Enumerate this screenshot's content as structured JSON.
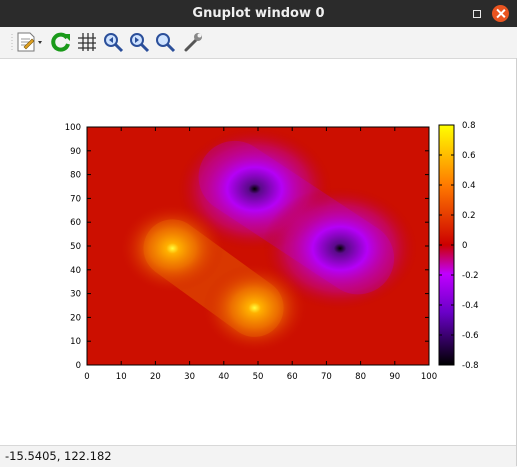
{
  "window": {
    "title": "Gnuplot window 0"
  },
  "toolbar": {
    "items": [
      {
        "name": "export-icon"
      },
      {
        "name": "replot-icon"
      },
      {
        "name": "grid-icon"
      },
      {
        "name": "zoom-previous-icon"
      },
      {
        "name": "zoom-next-icon"
      },
      {
        "name": "autoscale-icon"
      },
      {
        "name": "settings-icon"
      }
    ]
  },
  "status": {
    "coordinates": "-15.5405,  122.182"
  },
  "chart_data": {
    "type": "heatmap",
    "xlim": [
      0,
      100
    ],
    "ylim": [
      0,
      100
    ],
    "x_ticks": [
      "0",
      "10",
      "20",
      "30",
      "40",
      "50",
      "60",
      "70",
      "80",
      "90",
      "100"
    ],
    "y_ticks": [
      "0",
      "10",
      "20",
      "30",
      "40",
      "50",
      "60",
      "70",
      "80",
      "90",
      "100"
    ],
    "cbrange": [
      -0.8,
      0.8
    ],
    "cb_ticks": [
      "0.8",
      "0.6",
      "0.4",
      "0.2",
      "0",
      "-0.2",
      "-0.4",
      "-0.6",
      "-0.8"
    ],
    "palette": [
      "#000000",
      "#6a0dad",
      "#c000ff",
      "#cc0000",
      "#ff8c00",
      "#ffff00"
    ],
    "peaks": [
      {
        "x": 25,
        "y": 49,
        "value": 0.6
      },
      {
        "x": 49,
        "y": 24,
        "value": 0.6
      }
    ],
    "troughs": [
      {
        "x": 49,
        "y": 74,
        "value": -0.8
      },
      {
        "x": 74,
        "y": 49,
        "value": -0.8
      }
    ],
    "grid": false,
    "colorbar": "right"
  }
}
